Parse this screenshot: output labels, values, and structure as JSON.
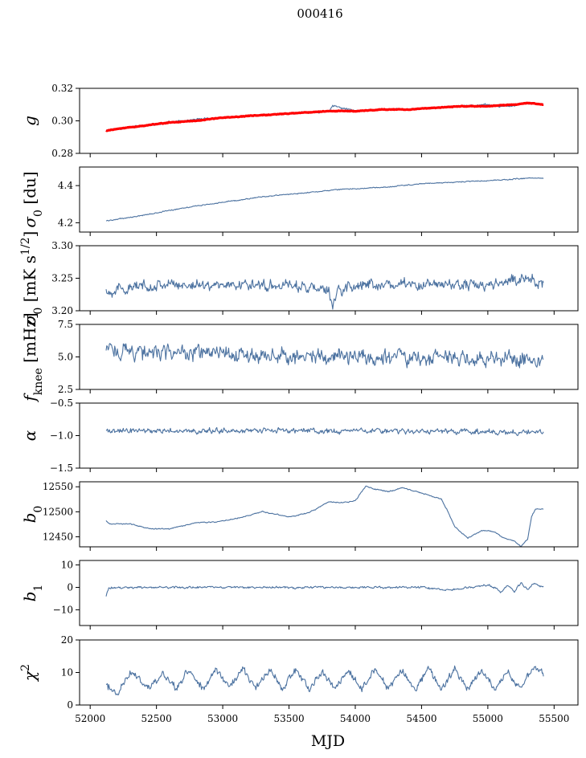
{
  "title": "000416",
  "chart_data": {
    "type": "line",
    "title": "000416",
    "xlabel": "MJD",
    "xlim": [
      51920,
      55680
    ],
    "xticks": [
      "52000",
      "52500",
      "53000",
      "53500",
      "54000",
      "54500",
      "55000",
      "55500"
    ],
    "x_start": 52120,
    "x_end": 55420,
    "panels": [
      {
        "name": "g",
        "ylabel_main": "g",
        "ylabel_sub": "",
        "ylabel_sup": "",
        "ylabel_unit": "",
        "ylim": [
          0.28,
          0.32
        ],
        "yticks": [
          "0.32",
          "0.30",
          "0.28"
        ],
        "yticks_values": [
          0.32,
          0.3,
          0.28
        ],
        "series": [
          {
            "name": "gain",
            "color": "#4c72a0",
            "x": [
              52120,
              52200,
              52400,
              52600,
              52800,
              53000,
              53200,
              53400,
              53600,
              53800,
              53830,
              54000,
              54200,
              54400,
              54600,
              54800,
              55000,
              55100,
              55200,
              55300,
              55420
            ],
            "y": [
              0.294,
              0.295,
              0.297,
              0.299,
              0.301,
              0.302,
              0.303,
              0.304,
              0.305,
              0.306,
              0.309,
              0.306,
              0.307,
              0.307,
              0.308,
              0.309,
              0.31,
              0.309,
              0.309,
              0.311,
              0.31
            ],
            "noise": 0.0009
          },
          {
            "name": "gain model",
            "color": "#ff0000",
            "x": [
              52120,
              52200,
              52400,
              52600,
              52800,
              53000,
              53200,
              53400,
              53600,
              53800,
              54000,
              54200,
              54400,
              54600,
              54800,
              55000,
              55200,
              55300,
              55420
            ],
            "y": [
              0.294,
              0.295,
              0.297,
              0.299,
              0.3,
              0.302,
              0.303,
              0.304,
              0.305,
              0.306,
              0.306,
              0.307,
              0.307,
              0.308,
              0.309,
              0.309,
              0.31,
              0.311,
              0.31
            ],
            "noise": 0.0003
          }
        ]
      },
      {
        "name": "sigma0",
        "ylabel_main": "σ",
        "ylabel_sub": "0",
        "ylabel_sup": "",
        "ylabel_unit": " [du]",
        "ylim": [
          4.15,
          4.5
        ],
        "yticks": [
          "4.4",
          "4.2"
        ],
        "yticks_values": [
          4.4,
          4.2
        ],
        "series": [
          {
            "name": "sigma0",
            "color": "#4c72a0",
            "x": [
              52120,
              52400,
              52700,
              53000,
              53300,
              53600,
              53900,
              54200,
              54500,
              54800,
              55100,
              55300,
              55420
            ],
            "y": [
              4.21,
              4.24,
              4.28,
              4.31,
              4.34,
              4.36,
              4.38,
              4.39,
              4.41,
              4.42,
              4.43,
              4.44,
              4.44
            ],
            "noise": 0.004
          }
        ]
      },
      {
        "name": "sigma0_mK",
        "ylabel_main": "σ",
        "ylabel_sub": "0",
        "ylabel_sup": "",
        "ylabel_unit": " [mK s",
        "ylabel_unit_sup": "1/2",
        "ylabel_unit_end": "]",
        "ylim": [
          3.2,
          3.3
        ],
        "yticks": [
          "3.30",
          "3.25",
          "3.20"
        ],
        "yticks_values": [
          3.3,
          3.25,
          3.2
        ],
        "series": [
          {
            "name": "sigma0 mK",
            "color": "#4c72a0",
            "x": [
              52120,
              52500,
              53000,
              53500,
              53800,
              53830,
              53860,
              54000,
              54500,
              55000,
              55300,
              55420
            ],
            "y": [
              3.23,
              3.24,
              3.24,
              3.24,
              3.23,
              3.2,
              3.23,
              3.24,
              3.24,
              3.24,
              3.25,
              3.24
            ],
            "noise": 0.012
          }
        ]
      },
      {
        "name": "fknee",
        "ylabel_main": "f",
        "ylabel_sub": "knee",
        "ylabel_sup": "",
        "ylabel_unit": " [mHz]",
        "ylim": [
          2.5,
          7.5
        ],
        "yticks": [
          "7.5",
          "5.0",
          "2.5"
        ],
        "yticks_values": [
          7.5,
          5.0,
          2.5
        ],
        "series": [
          {
            "name": "fknee",
            "color": "#4c72a0",
            "x": [
              52120,
              52500,
              53000,
              53500,
              54000,
              54500,
              55000,
              55420
            ],
            "y": [
              5.6,
              5.3,
              5.2,
              5.1,
              5.0,
              5.0,
              4.9,
              4.7
            ],
            "noise": 0.9
          }
        ]
      },
      {
        "name": "alpha",
        "ylabel_main": "α",
        "ylabel_sub": "",
        "ylabel_sup": "",
        "ylabel_unit": "",
        "ylim": [
          -1.5,
          -0.5
        ],
        "yticks": [
          "−0.5",
          "−1.0",
          "−1.5"
        ],
        "yticks_values": [
          -0.5,
          -1.0,
          -1.5
        ],
        "series": [
          {
            "name": "alpha",
            "color": "#4c72a0",
            "x": [
              52120,
              52500,
              53000,
              53500,
              54000,
              54500,
              55000,
              55420
            ],
            "y": [
              -0.93,
              -0.92,
              -0.93,
              -0.92,
              -0.93,
              -0.93,
              -0.94,
              -0.96
            ],
            "noise": 0.06
          }
        ]
      },
      {
        "name": "b0",
        "ylabel_main": "b",
        "ylabel_sub": "0",
        "ylabel_sup": "",
        "ylabel_unit": "",
        "ylim": [
          12430,
          12560
        ],
        "yticks": [
          "12550",
          "12500",
          "12450"
        ],
        "yticks_values": [
          12550,
          12500,
          12450
        ],
        "series": [
          {
            "name": "b0",
            "color": "#4c72a0",
            "x": [
              52120,
              52150,
              52300,
              52450,
              52600,
              52800,
              52950,
              53100,
              53300,
              53500,
              53650,
              53800,
              53900,
              54000,
              54080,
              54150,
              54250,
              54350,
              54500,
              54650,
              54700,
              54750,
              54850,
              54950,
              55000,
              55050,
              55100,
              55150,
              55200,
              55250,
              55300,
              55330,
              55360,
              55420
            ],
            "y": [
              12482,
              12476,
              12476,
              12466,
              12466,
              12478,
              12480,
              12486,
              12500,
              12490,
              12498,
              12520,
              12518,
              12522,
              12552,
              12545,
              12540,
              12548,
              12538,
              12525,
              12500,
              12470,
              12448,
              12462,
              12462,
              12460,
              12450,
              12445,
              12442,
              12430,
              12445,
              12490,
              12505,
              12505
            ],
            "noise": 1.5
          }
        ]
      },
      {
        "name": "b1",
        "ylabel_main": "b",
        "ylabel_sub": "1",
        "ylabel_sup": "",
        "ylabel_unit": "",
        "ylim": [
          -17,
          12
        ],
        "yticks": [
          "10",
          "0",
          "−10"
        ],
        "yticks_values": [
          10,
          0,
          -10
        ],
        "series": [
          {
            "name": "b1",
            "color": "#4c72a0",
            "x": [
              52120,
              52140,
              52200,
              52600,
              53000,
              53500,
              54000,
              54500,
              54700,
              54900,
              55000,
              55050,
              55100,
              55150,
              55200,
              55250,
              55300,
              55350,
              55420
            ],
            "y": [
              -4,
              0,
              0,
              0,
              0,
              0,
              0,
              0,
              -1,
              0,
              1,
              0,
              -2,
              1,
              -2,
              2,
              -1,
              2,
              0
            ],
            "noise": 0.7
          }
        ]
      },
      {
        "name": "chi2",
        "ylabel_main": "χ",
        "ylabel_sub": "",
        "ylabel_sup": "2",
        "ylabel_unit": "",
        "ylim": [
          0,
          20
        ],
        "yticks": [
          "20",
          "10",
          "0"
        ],
        "yticks_values": [
          20,
          10,
          0
        ],
        "series": [
          {
            "name": "chi2",
            "color": "#4c72a0",
            "x": [
              52120,
              52200,
              52300,
              52450,
              52550,
              52650,
              52750,
              52850,
              52950,
              53050,
              53150,
              53250,
              53350,
              53450,
              53550,
              53650,
              53750,
              53850,
              53950,
              54050,
              54150,
              54250,
              54350,
              54450,
              54550,
              54650,
              54750,
              54850,
              54950,
              55050,
              55150,
              55250,
              55350,
              55420
            ],
            "y": [
              6,
              4,
              10,
              5,
              10,
              5,
              11,
              5,
              11,
              5,
              11,
              5,
              11,
              5,
              11,
              5,
              10,
              5,
              11,
              5,
              11,
              5,
              11,
              5,
              11,
              5,
              11,
              5,
              11,
              5,
              10,
              5,
              12,
              9
            ],
            "noise": 1.6
          }
        ]
      }
    ]
  }
}
